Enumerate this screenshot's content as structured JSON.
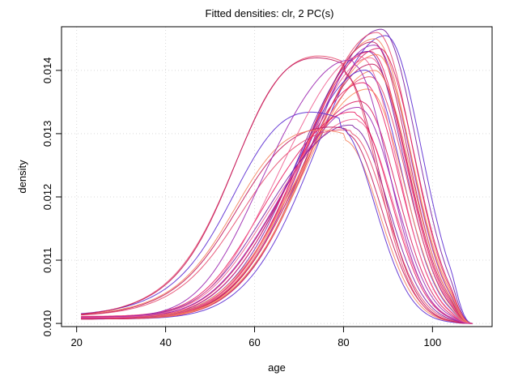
{
  "chart_data": {
    "type": "line",
    "title": "Fitted densities: clr, 2 PC(s)",
    "xlabel": "age",
    "ylabel": "density",
    "xlim": [
      21,
      109
    ],
    "ylim": [
      0.00995,
      0.01469
    ],
    "xticks": [
      20,
      40,
      60,
      80,
      100
    ],
    "yticks": [
      0.01,
      0.011,
      0.012,
      0.013,
      0.014
    ],
    "ytick_labels": [
      "0.010",
      "0.011",
      "0.012",
      "0.013",
      "0.014"
    ],
    "grid": true,
    "grid_style": "dotted",
    "legend": "none",
    "series_note": "Curves: each density starts near 0.0101 at age 21, rises to a peak between age 78 and 89, and falls back to 0.0100 at age 109. 'peak' values below are in density units.",
    "colors": [
      "#5b2bd1",
      "#7b1fa2",
      "#c2185b",
      "#e64a6e",
      "#f06292",
      "#f4845f",
      "#d81b60",
      "#9c27b0",
      "#e91e63",
      "#fb8c5a"
    ],
    "series": [
      {
        "peak_age": 88.5,
        "peak": 0.01465,
        "start": 0.01008,
        "shoulder": 0,
        "color": "#7b1fa2"
      },
      {
        "peak_age": 89.5,
        "peak": 0.01455,
        "start": 0.01007,
        "shoulder": 0,
        "color": "#5b2bd1"
      },
      {
        "peak_age": 87.5,
        "peak": 0.0146,
        "start": 0.01007,
        "shoulder": 0,
        "color": "#e64a6e"
      },
      {
        "peak_age": 87.0,
        "peak": 0.0145,
        "start": 0.01008,
        "shoulder": 0,
        "color": "#f4845f"
      },
      {
        "peak_age": 86.5,
        "peak": 0.01445,
        "start": 0.01008,
        "shoulder": 0,
        "color": "#c2185b"
      },
      {
        "peak_age": 87.0,
        "peak": 0.0144,
        "start": 0.01007,
        "shoulder": 0,
        "color": "#9c27b0"
      },
      {
        "peak_age": 88.0,
        "peak": 0.01435,
        "start": 0.01007,
        "shoulder": 0,
        "color": "#d81b60"
      },
      {
        "peak_age": 86.0,
        "peak": 0.0143,
        "start": 0.01008,
        "shoulder": 0,
        "color": "#e91e63"
      },
      {
        "peak_age": 87.5,
        "peak": 0.01425,
        "start": 0.01007,
        "shoulder": 0,
        "color": "#fb8c5a"
      },
      {
        "peak_age": 86.0,
        "peak": 0.0142,
        "start": 0.01008,
        "shoulder": 0,
        "color": "#f06292"
      },
      {
        "peak_age": 85.5,
        "peak": 0.0143,
        "start": 0.01008,
        "shoulder": 0,
        "color": "#7b1fa2"
      },
      {
        "peak_age": 86.5,
        "peak": 0.0141,
        "start": 0.01007,
        "shoulder": 0,
        "color": "#c2185b"
      },
      {
        "peak_age": 87.0,
        "peak": 0.014,
        "start": 0.01008,
        "shoulder": 0,
        "color": "#f4845f"
      },
      {
        "peak_age": 86.0,
        "peak": 0.0139,
        "start": 0.01008,
        "shoulder": 0,
        "color": "#e64a6e"
      },
      {
        "peak_age": 85.0,
        "peak": 0.014,
        "start": 0.01008,
        "shoulder": 0.0001,
        "color": "#5b2bd1"
      },
      {
        "peak_age": 84.5,
        "peak": 0.0138,
        "start": 0.01008,
        "shoulder": 0.0001,
        "color": "#e91e63"
      },
      {
        "peak_age": 85.5,
        "peak": 0.0137,
        "start": 0.01009,
        "shoulder": 0.0001,
        "color": "#fb8c5a"
      },
      {
        "peak_age": 84.0,
        "peak": 0.0135,
        "start": 0.01009,
        "shoulder": 0.0002,
        "color": "#d81b60"
      },
      {
        "peak_age": 83.5,
        "peak": 0.0134,
        "start": 0.01009,
        "shoulder": 0.0002,
        "color": "#9c27b0"
      },
      {
        "peak_age": 83.0,
        "peak": 0.0132,
        "start": 0.0101,
        "shoulder": 0.0003,
        "color": "#f06292"
      },
      {
        "peak_age": 82.0,
        "peak": 0.0131,
        "start": 0.0101,
        "shoulder": 0.0003,
        "color": "#7b1fa2"
      },
      {
        "peak_age": 81.5,
        "peak": 0.013,
        "start": 0.01011,
        "shoulder": 0.0004,
        "color": "#e64a6e"
      },
      {
        "peak_age": 80.5,
        "peak": 0.013,
        "start": 0.01011,
        "shoulder": 0.0005,
        "color": "#c2185b"
      },
      {
        "peak_age": 80.0,
        "peak": 0.0129,
        "start": 0.01012,
        "shoulder": 0.0006,
        "color": "#f4845f"
      },
      {
        "peak_age": 79.0,
        "peak": 0.0131,
        "start": 0.01012,
        "shoulder": 0.0007,
        "color": "#5b2bd1"
      },
      {
        "peak_age": 82.5,
        "peak": 0.0133,
        "start": 0.01011,
        "shoulder": 0.0004,
        "color": "#e91e63"
      },
      {
        "peak_age": 79.5,
        "peak": 0.014,
        "start": 0.0101,
        "shoulder": 0.0008,
        "color": "#e64a6e"
      },
      {
        "peak_age": 80.0,
        "peak": 0.01395,
        "start": 0.01011,
        "shoulder": 0.0009,
        "color": "#c2185b"
      },
      {
        "peak_age": 82.0,
        "peak": 0.0141,
        "start": 0.01009,
        "shoulder": 0.0005,
        "color": "#9c27b0"
      },
      {
        "peak_age": 84.0,
        "peak": 0.0142,
        "start": 0.01009,
        "shoulder": 0.0003,
        "color": "#f06292"
      }
    ]
  }
}
